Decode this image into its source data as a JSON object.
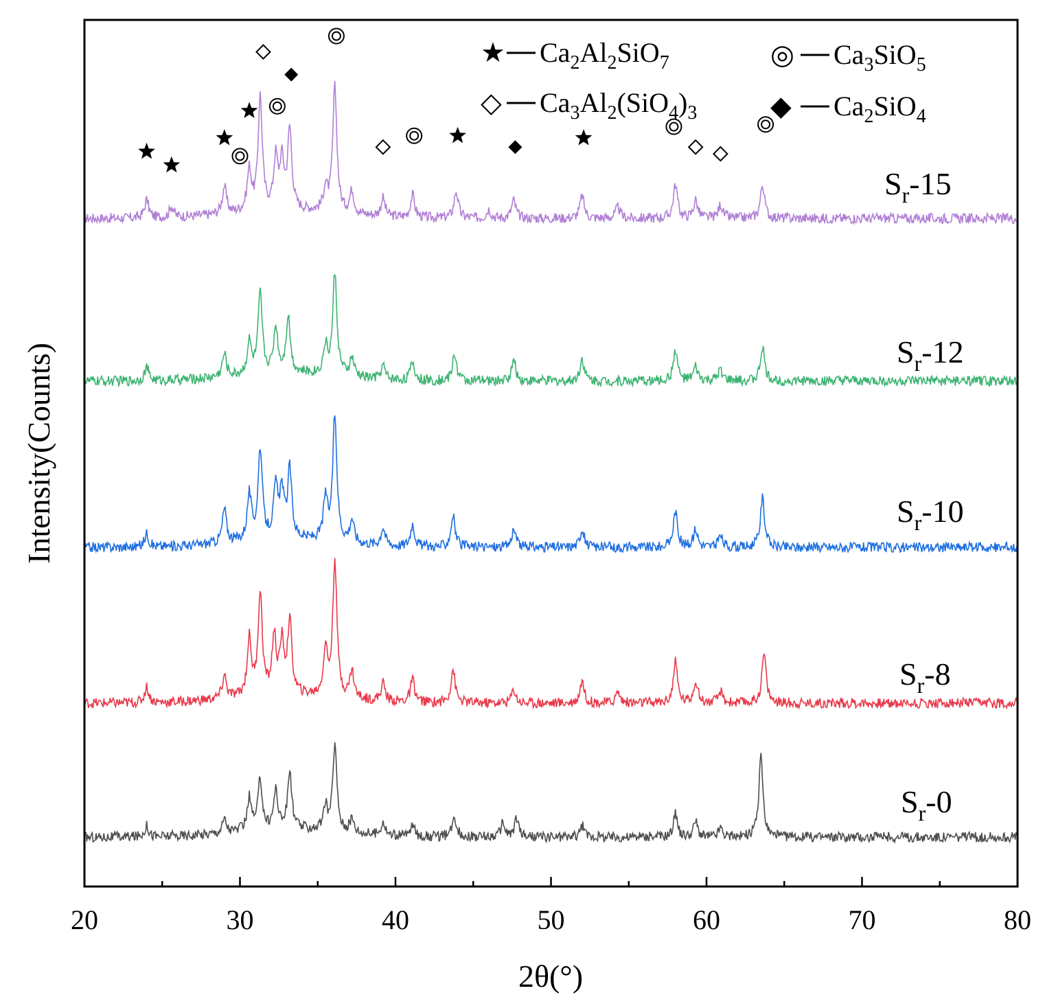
{
  "chart_data": {
    "type": "line",
    "title": "",
    "xlabel": "2θ(°)",
    "ylabel": "Intensity(Counts)",
    "xlim": [
      20,
      80
    ],
    "xticks": [
      20,
      30,
      40,
      50,
      60,
      70,
      80
    ],
    "xtick_labels": [
      "20",
      "30",
      "40",
      "50",
      "60",
      "70",
      "80"
    ],
    "grid": false,
    "legend": [
      {
        "marker": "star",
        "symbol": "★",
        "label": "Ca2Al2SiO7",
        "base_a": "Ca",
        "sub_a": "2",
        "base_b": "Al",
        "sub_b": "2",
        "base_c": "SiO",
        "sub_c": "7"
      },
      {
        "marker": "double-circle",
        "symbol": "◎",
        "label": "Ca3SiO5",
        "base_a": "Ca",
        "sub_a": "3",
        "base_b": "SiO",
        "sub_b": "5"
      },
      {
        "marker": "open-diamond",
        "symbol": "◇",
        "label": "Ca3Al2(SiO4)3",
        "base_a": "Ca",
        "sub_a": "3",
        "base_b": "Al",
        "sub_b": "2",
        "base_c": "(SiO",
        "sub_c": "4",
        "base_d": ")",
        "sub_d": "3"
      },
      {
        "marker": "filled-diamond",
        "symbol": "◆",
        "label": "Ca2SiO4",
        "base_a": "Ca",
        "sub_a": "2",
        "base_b": "SiO",
        "sub_b": "4"
      }
    ],
    "series": [
      {
        "name": "Sr-15",
        "label_base": "S",
        "label_sub": "r",
        "label_suffix": "-15",
        "color": "#b07fd6",
        "offset": 4,
        "peaks": [
          [
            24.0,
            0.08
          ],
          [
            25.6,
            0.05
          ],
          [
            29.0,
            0.12
          ],
          [
            30.6,
            0.18
          ],
          [
            31.3,
            0.5
          ],
          [
            32.3,
            0.22
          ],
          [
            32.7,
            0.2
          ],
          [
            33.2,
            0.35
          ],
          [
            35.5,
            0.1
          ],
          [
            36.1,
            0.55
          ],
          [
            37.2,
            0.1
          ],
          [
            39.2,
            0.08
          ],
          [
            41.1,
            0.1
          ],
          [
            43.9,
            0.12
          ],
          [
            46.0,
            0.04
          ],
          [
            47.6,
            0.08
          ],
          [
            52.0,
            0.1
          ],
          [
            54.3,
            0.05
          ],
          [
            58.0,
            0.15
          ],
          [
            59.3,
            0.08
          ],
          [
            60.9,
            0.06
          ],
          [
            63.6,
            0.15
          ]
        ]
      },
      {
        "name": "Sr-12",
        "label_base": "S",
        "label_sub": "r",
        "label_suffix": "-12",
        "color": "#3cb371",
        "offset": 3,
        "peaks": [
          [
            24.0,
            0.06
          ],
          [
            29.0,
            0.1
          ],
          [
            30.6,
            0.14
          ],
          [
            31.3,
            0.35
          ],
          [
            32.3,
            0.2
          ],
          [
            33.1,
            0.25
          ],
          [
            35.5,
            0.12
          ],
          [
            36.1,
            0.45
          ],
          [
            37.2,
            0.08
          ],
          [
            39.2,
            0.06
          ],
          [
            41.1,
            0.08
          ],
          [
            43.8,
            0.12
          ],
          [
            47.6,
            0.09
          ],
          [
            52.0,
            0.1
          ],
          [
            58.0,
            0.14
          ],
          [
            59.3,
            0.06
          ],
          [
            60.9,
            0.05
          ],
          [
            63.6,
            0.15
          ]
        ]
      },
      {
        "name": "Sr-10",
        "label_base": "S",
        "label_sub": "r",
        "label_suffix": "-10",
        "color": "#1f6fe0",
        "offset": 2,
        "peaks": [
          [
            24.0,
            0.06
          ],
          [
            29.0,
            0.15
          ],
          [
            30.6,
            0.2
          ],
          [
            31.3,
            0.4
          ],
          [
            32.3,
            0.22
          ],
          [
            32.7,
            0.2
          ],
          [
            33.2,
            0.3
          ],
          [
            35.5,
            0.18
          ],
          [
            36.1,
            0.55
          ],
          [
            37.2,
            0.1
          ],
          [
            39.2,
            0.08
          ],
          [
            41.1,
            0.1
          ],
          [
            43.7,
            0.14
          ],
          [
            47.6,
            0.08
          ],
          [
            52.0,
            0.08
          ],
          [
            58.0,
            0.16
          ],
          [
            59.3,
            0.08
          ],
          [
            60.9,
            0.05
          ],
          [
            63.6,
            0.22
          ]
        ]
      },
      {
        "name": "Sr-8",
        "label_base": "S",
        "label_sub": "r",
        "label_suffix": "-8",
        "color": "#e8394a",
        "offset": 1,
        "peaks": [
          [
            24.0,
            0.07
          ],
          [
            29.0,
            0.1
          ],
          [
            30.6,
            0.25
          ],
          [
            31.3,
            0.45
          ],
          [
            32.2,
            0.25
          ],
          [
            32.7,
            0.22
          ],
          [
            33.2,
            0.32
          ],
          [
            35.5,
            0.2
          ],
          [
            36.1,
            0.6
          ],
          [
            37.2,
            0.12
          ],
          [
            39.2,
            0.08
          ],
          [
            41.1,
            0.1
          ],
          [
            43.7,
            0.15
          ],
          [
            47.6,
            0.06
          ],
          [
            52.0,
            0.1
          ],
          [
            54.3,
            0.05
          ],
          [
            58.0,
            0.18
          ],
          [
            59.3,
            0.1
          ],
          [
            60.9,
            0.05
          ],
          [
            63.7,
            0.22
          ]
        ]
      },
      {
        "name": "Sr-0",
        "label_base": "S",
        "label_sub": "r",
        "label_suffix": "-0",
        "color": "#4d4d4d",
        "offset": 0,
        "peaks": [
          [
            24.0,
            0.05
          ],
          [
            29.0,
            0.06
          ],
          [
            30.6,
            0.14
          ],
          [
            31.3,
            0.22
          ],
          [
            32.3,
            0.17
          ],
          [
            33.2,
            0.25
          ],
          [
            35.5,
            0.1
          ],
          [
            36.1,
            0.38
          ],
          [
            37.2,
            0.06
          ],
          [
            39.2,
            0.06
          ],
          [
            41.1,
            0.05
          ],
          [
            43.8,
            0.09
          ],
          [
            46.9,
            0.06
          ],
          [
            47.8,
            0.08
          ],
          [
            52.0,
            0.05
          ],
          [
            58.0,
            0.1
          ],
          [
            59.3,
            0.07
          ],
          [
            60.9,
            0.04
          ],
          [
            63.5,
            0.35
          ]
        ]
      }
    ],
    "phase_markers": [
      {
        "phase": "Ca2Al2SiO7",
        "marker": "star",
        "two_theta": 24.0,
        "level": 0.24
      },
      {
        "phase": "Ca2Al2SiO7",
        "marker": "star",
        "two_theta": 25.6,
        "level": 0.18
      },
      {
        "phase": "Ca2Al2SiO7",
        "marker": "star",
        "two_theta": 29.0,
        "level": 0.3
      },
      {
        "phase": "Ca3SiO5",
        "marker": "double-circle",
        "two_theta": 30.0,
        "level": 0.22
      },
      {
        "phase": "Ca2Al2SiO7",
        "marker": "star",
        "two_theta": 30.6,
        "level": 0.42
      },
      {
        "phase": "Ca3Al2(SiO4)3",
        "marker": "open-diamond",
        "two_theta": 31.5,
        "level": 0.68
      },
      {
        "phase": "Ca3SiO5",
        "marker": "double-circle",
        "two_theta": 32.4,
        "level": 0.44
      },
      {
        "phase": "Ca2SiO4",
        "marker": "filled-diamond",
        "two_theta": 33.3,
        "level": 0.58
      },
      {
        "phase": "Ca3SiO5",
        "marker": "double-circle",
        "two_theta": 36.2,
        "level": 0.75
      },
      {
        "phase": "Ca3Al2(SiO4)3",
        "marker": "open-diamond",
        "two_theta": 39.2,
        "level": 0.26
      },
      {
        "phase": "Ca3SiO5",
        "marker": "double-circle",
        "two_theta": 41.2,
        "level": 0.31
      },
      {
        "phase": "Ca2Al2SiO7",
        "marker": "star",
        "two_theta": 44.0,
        "level": 0.31
      },
      {
        "phase": "Ca2SiO4",
        "marker": "filled-diamond",
        "two_theta": 47.7,
        "level": 0.26
      },
      {
        "phase": "Ca2Al2SiO7",
        "marker": "star",
        "two_theta": 52.1,
        "level": 0.3
      },
      {
        "phase": "Ca3SiO5",
        "marker": "double-circle",
        "two_theta": 57.9,
        "level": 0.35
      },
      {
        "phase": "Ca3Al2(SiO4)3",
        "marker": "open-diamond",
        "two_theta": 59.3,
        "level": 0.26
      },
      {
        "phase": "Ca3Al2(SiO4)3",
        "marker": "open-diamond",
        "two_theta": 60.9,
        "level": 0.23
      },
      {
        "phase": "Ca3SiO5",
        "marker": "double-circle",
        "two_theta": 63.8,
        "level": 0.36
      }
    ]
  }
}
